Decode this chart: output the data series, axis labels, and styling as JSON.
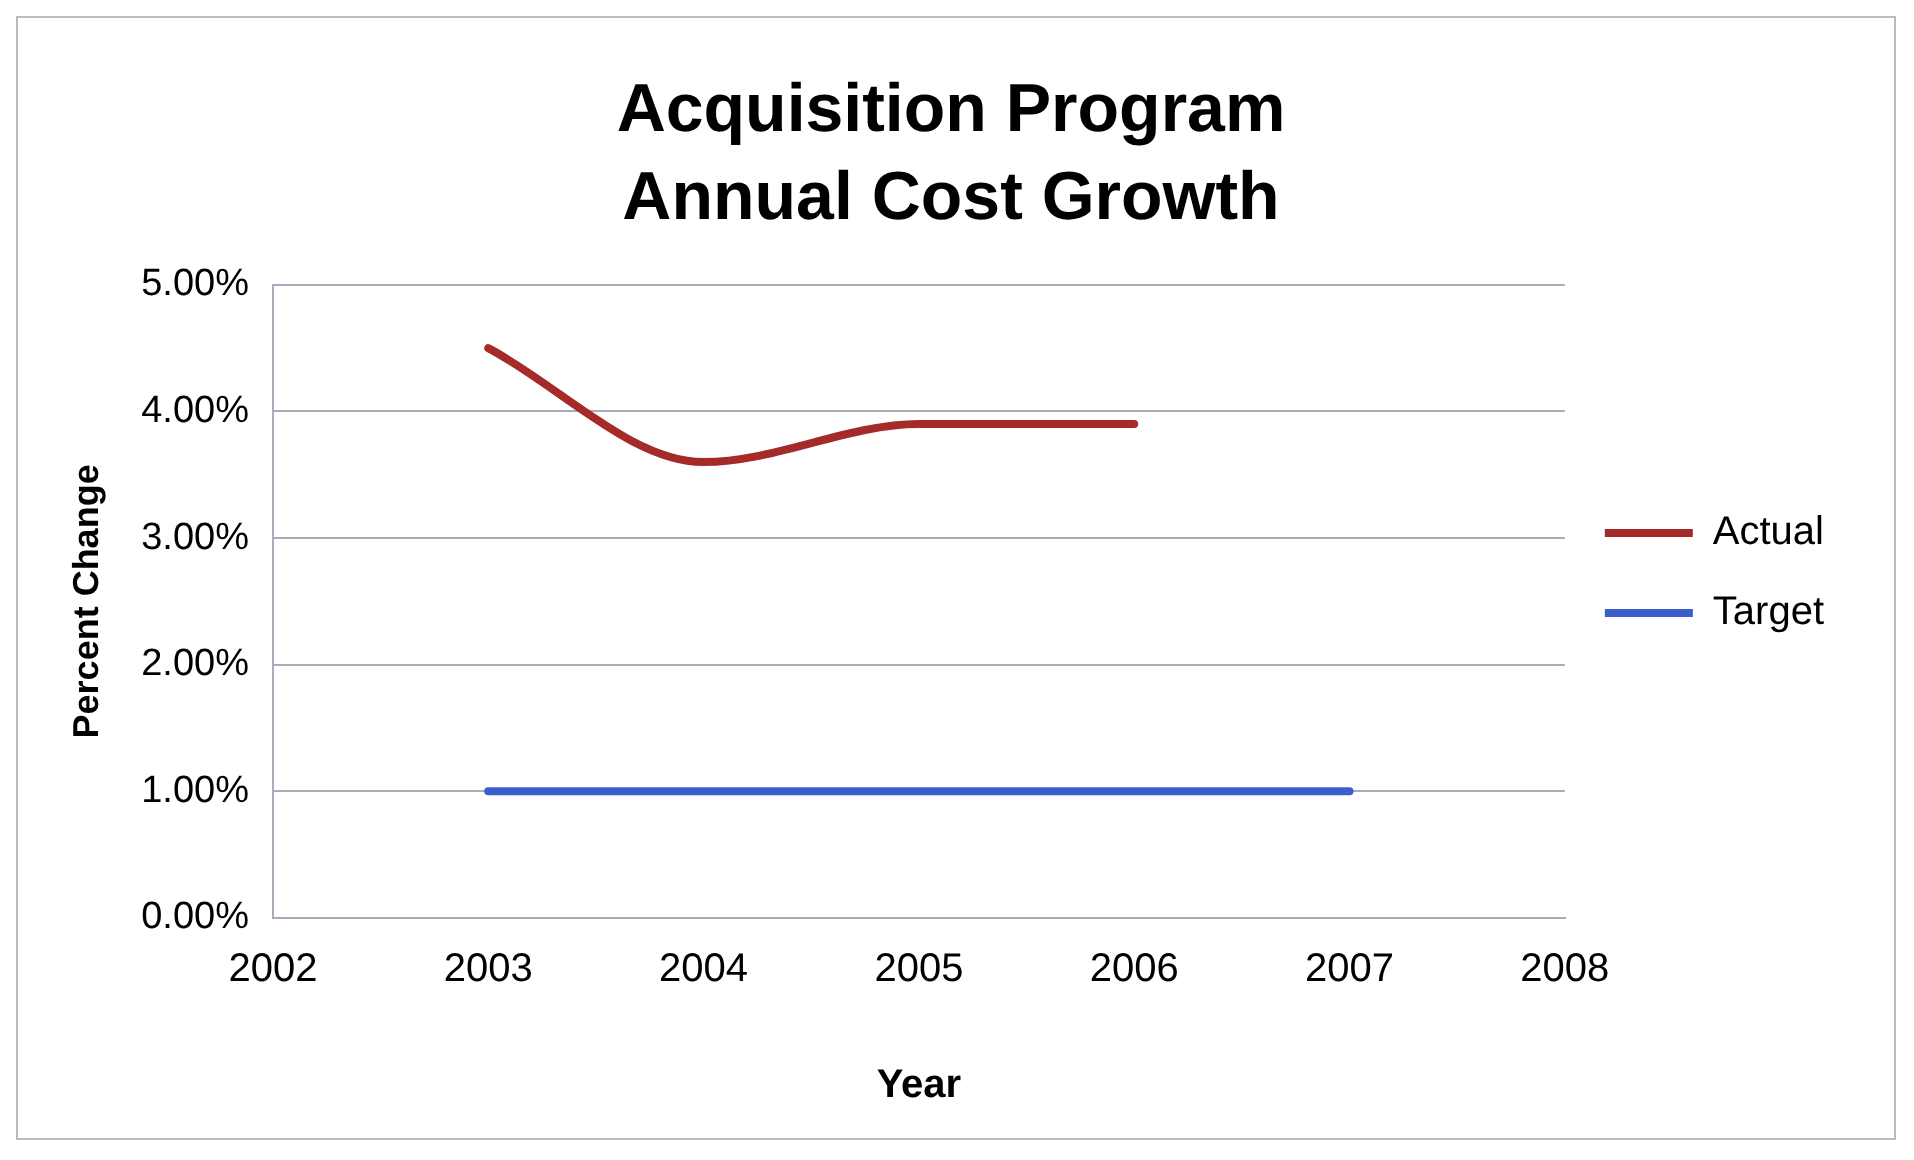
{
  "chart_data": {
    "type": "line",
    "title": "Acquisition Program\nAnnual Cost Growth",
    "xlabel": "Year",
    "ylabel": "Percent Change",
    "series": [
      {
        "name": "Actual",
        "color": "#a52a2a",
        "x": [
          2003,
          2004,
          2005,
          2006
        ],
        "values": [
          4.5,
          3.6,
          3.9,
          3.9
        ]
      },
      {
        "name": "Target",
        "color": "#3a5fcd",
        "x": [
          2003,
          2004,
          2005,
          2006,
          2007
        ],
        "values": [
          1.0,
          1.0,
          1.0,
          1.0,
          1.0
        ]
      }
    ],
    "xlim": [
      2002,
      2008
    ],
    "xticks": [
      2002,
      2003,
      2004,
      2005,
      2006,
      2007,
      2008
    ],
    "ylim": [
      0,
      5
    ],
    "yticks": [
      {
        "value": 0,
        "label": "0.00%"
      },
      {
        "value": 1,
        "label": "1.00%"
      },
      {
        "value": 2,
        "label": "2.00%"
      },
      {
        "value": 3,
        "label": "3.00%"
      },
      {
        "value": 4,
        "label": "4.00%"
      },
      {
        "value": 5,
        "label": "5.00%"
      }
    ],
    "grid": "y",
    "legend": "right",
    "marker": "none",
    "line_style": "solid"
  }
}
